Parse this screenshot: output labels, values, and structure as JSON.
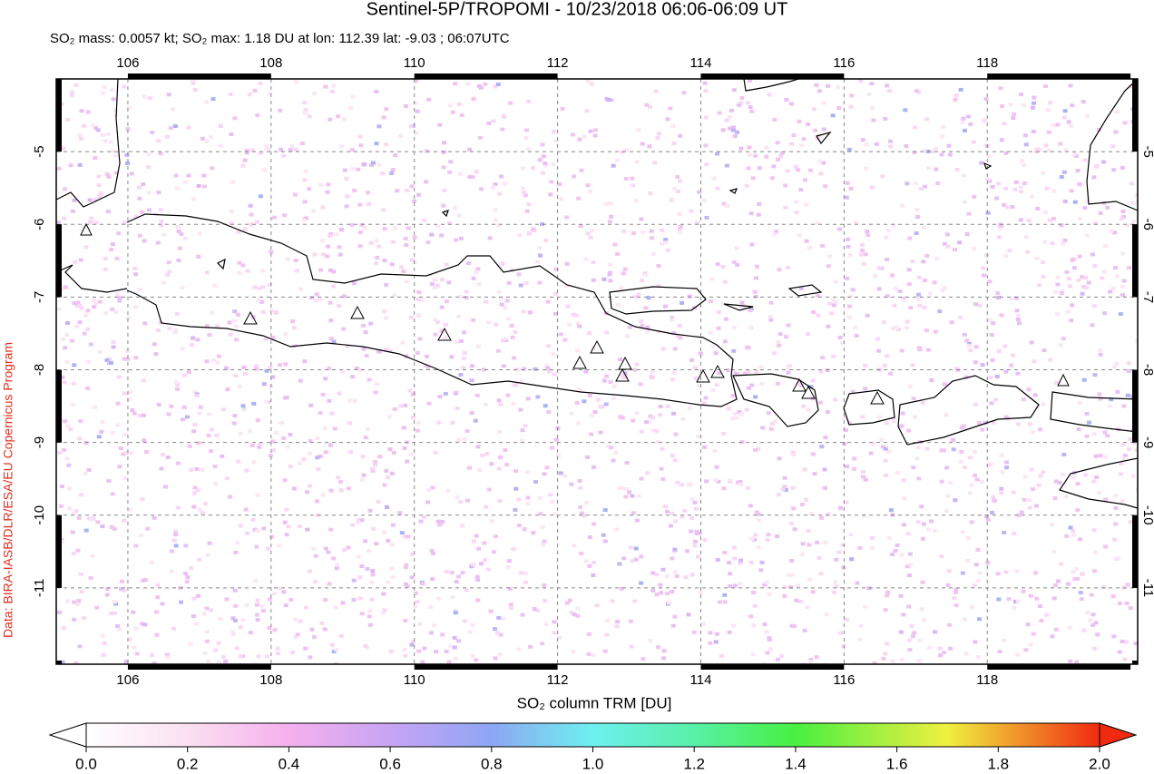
{
  "title": "Sentinel-5P/TROPOMI - 10/23/2018 06:06-06:09 UT",
  "subtitle": "SO₂ mass: 0.0057 kt; SO₂ max: 1.18 DU at lon: 112.39 lat: -9.03 ; 06:07UTC",
  "credit": "Data: BIRA-IASB/DLR/ESA/EU Copernicus Program",
  "map": {
    "xlim": [
      105,
      120.1
    ],
    "ylim": [
      -12.05,
      -4
    ],
    "xticks": [
      106,
      108,
      110,
      112,
      114,
      116,
      118
    ],
    "yticks": [
      -5,
      -6,
      -7,
      -8,
      -9,
      -10,
      -11
    ],
    "grid": true
  },
  "colorbar": {
    "label": "SO₂ column TRM [DU]",
    "range": [
      0,
      2
    ],
    "ticks": [
      {
        "value": 0,
        "label": "0.0"
      },
      {
        "value": 0.2,
        "label": "0.2"
      },
      {
        "value": 0.4,
        "label": "0.4"
      },
      {
        "value": 0.6,
        "label": "0.6"
      },
      {
        "value": 0.8,
        "label": "0.8"
      },
      {
        "value": 1,
        "label": "1.0"
      },
      {
        "value": 1.2,
        "label": "1.2"
      },
      {
        "value": 1.4,
        "label": "1.4"
      },
      {
        "value": 1.6,
        "label": "1.6"
      },
      {
        "value": 1.8,
        "label": "1.8"
      },
      {
        "value": 2,
        "label": "2.0"
      }
    ]
  }
}
